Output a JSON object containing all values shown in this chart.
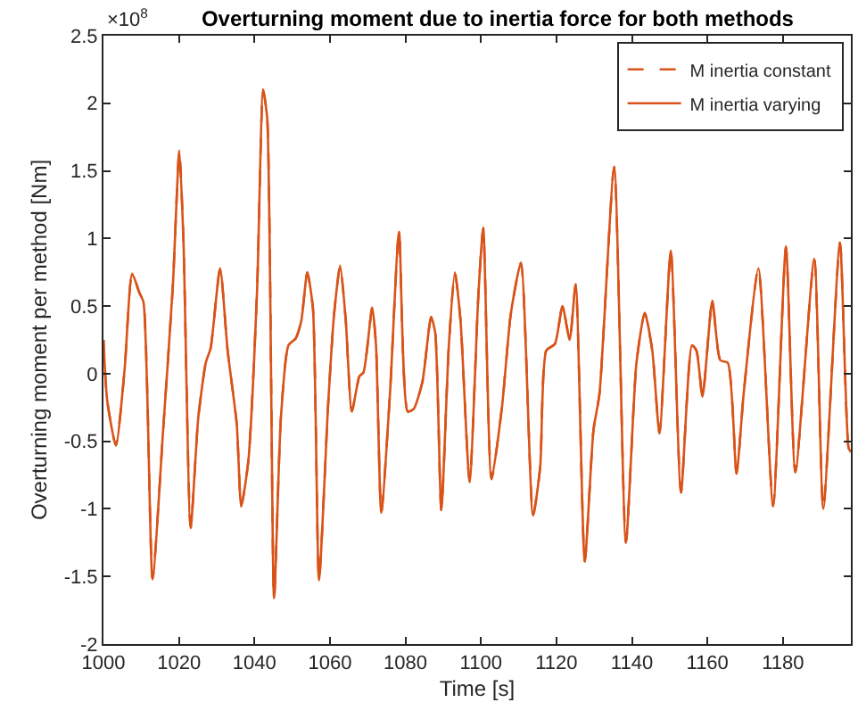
{
  "chart_data": {
    "type": "line",
    "title": "Overturning moment due to inertia force for both methods",
    "xlabel": "Time [s]",
    "ylabel": "Overturning moment per method [Nm]",
    "annotations": [
      "×10$^{8}$"
    ],
    "x": [
      1000,
      1001,
      1003.3,
      1005.6,
      1007.6,
      1009.5,
      1010.6,
      1013,
      1015.8,
      1018.4,
      1020.1,
      1021.2,
      1023.1,
      1025.1,
      1027.1,
      1028.4,
      1030.9,
      1032.9,
      1035.3,
      1036.5,
      1038.4,
      1040.7,
      1042.3,
      1043.4,
      1045.2,
      1047,
      1049,
      1050.9,
      1052.4,
      1054,
      1055.5,
      1057.1,
      1059.5,
      1061.1,
      1062.7,
      1064.2,
      1065.8,
      1067.8,
      1068.9,
      1071.2,
      1072.2,
      1073.6,
      1075.9,
      1078.3,
      1080.6,
      1082.2,
      1084.5,
      1086.8,
      1087.9,
      1089.5,
      1091.5,
      1093.1,
      1094.6,
      1097,
      1099.3,
      1100.6,
      1102.8,
      1105.6,
      1107.9,
      1110.6,
      1113.8,
      1115.7,
      1117.3,
      1119.6,
      1121.6,
      1123.5,
      1125.1,
      1127.5,
      1129.8,
      1131.4,
      1135.3,
      1138.4,
      1141.2,
      1143.4,
      1145.4,
      1147.3,
      1150.3,
      1153,
      1155.9,
      1157.1,
      1158.7,
      1161.3,
      1163.4,
      1165.4,
      1167.7,
      1169.6,
      1173.5,
      1177.4,
      1180.8,
      1183.3,
      1188.3,
      1190.7,
      1195.1,
      1197.4,
      1198
    ],
    "series": [
      {
        "name": "M inertia constant",
        "color": "#d95319",
        "line_style": "dashed",
        "values": [
          0.25,
          -0.2,
          -0.53,
          0.03,
          0.74,
          0.6,
          0.53,
          -1.52,
          -0.42,
          0.66,
          1.65,
          0.98,
          -1.14,
          -0.33,
          0.08,
          0.19,
          0.78,
          0.17,
          -0.37,
          -0.98,
          -0.64,
          0.62,
          2.1,
          1.88,
          -1.66,
          -0.33,
          0.21,
          0.26,
          0.39,
          0.75,
          0.48,
          -1.53,
          -0.24,
          0.44,
          0.8,
          0.39,
          -0.28,
          -0.02,
          0.01,
          0.49,
          0.21,
          -1.03,
          -0.15,
          1.05,
          -0.28,
          -0.26,
          -0.06,
          0.42,
          0.3,
          -1.01,
          0.21,
          0.75,
          0.39,
          -0.8,
          0.57,
          1.08,
          -0.78,
          -0.24,
          0.44,
          0.82,
          -1.05,
          -0.69,
          0.17,
          0.22,
          0.5,
          0.25,
          0.66,
          -1.39,
          -0.42,
          -0.15,
          1.53,
          -1.25,
          0.08,
          0.45,
          0.17,
          -0.44,
          0.91,
          -0.88,
          0.21,
          0.17,
          -0.17,
          0.54,
          0.1,
          0.08,
          -0.74,
          -0.15,
          0.78,
          -0.98,
          0.94,
          -0.73,
          0.85,
          -1.0,
          0.97,
          -0.55,
          -0.58
        ]
      },
      {
        "name": "M inertia varying",
        "color": "#d95319",
        "line_style": "solid",
        "values": [
          0.25,
          -0.2,
          -0.53,
          0.03,
          0.74,
          0.6,
          0.53,
          -1.52,
          -0.42,
          0.66,
          1.65,
          0.98,
          -1.14,
          -0.33,
          0.08,
          0.19,
          0.78,
          0.17,
          -0.37,
          -0.98,
          -0.64,
          0.62,
          2.1,
          1.88,
          -1.66,
          -0.33,
          0.21,
          0.26,
          0.39,
          0.75,
          0.48,
          -1.53,
          -0.24,
          0.44,
          0.8,
          0.39,
          -0.28,
          -0.02,
          0.01,
          0.49,
          0.21,
          -1.03,
          -0.15,
          1.05,
          -0.28,
          -0.26,
          -0.06,
          0.42,
          0.3,
          -1.01,
          0.21,
          0.75,
          0.39,
          -0.8,
          0.57,
          1.08,
          -0.78,
          -0.24,
          0.44,
          0.82,
          -1.05,
          -0.69,
          0.17,
          0.22,
          0.5,
          0.25,
          0.66,
          -1.39,
          -0.42,
          -0.15,
          1.53,
          -1.25,
          0.08,
          0.45,
          0.17,
          -0.44,
          0.91,
          -0.88,
          0.21,
          0.17,
          -0.17,
          0.54,
          0.1,
          0.08,
          -0.74,
          -0.15,
          0.78,
          -0.98,
          0.94,
          -0.73,
          0.85,
          -1.0,
          0.97,
          -0.55,
          -0.58
        ]
      }
    ],
    "xlim": [
      1000,
      1198
    ],
    "xticks": [
      1000,
      1020,
      1040,
      1060,
      1080,
      1100,
      1120,
      1140,
      1160,
      1180
    ],
    "ylim": [
      -2,
      2.5
    ],
    "yticks": [
      -2,
      -1.5,
      -1,
      -0.5,
      0,
      0.5,
      1,
      1.5,
      2,
      2.5
    ],
    "grid": false,
    "legend": "top right",
    "marker": "none"
  }
}
